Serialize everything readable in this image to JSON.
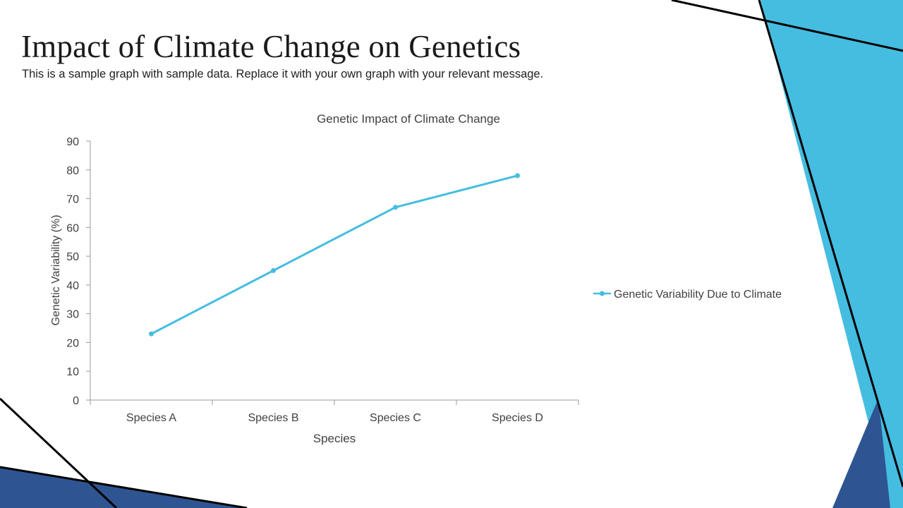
{
  "slide": {
    "title": "Impact of Climate Change on Genetics",
    "subtitle": "This is a sample graph with sample data. Replace it with your own graph with your relevant message."
  },
  "theme": {
    "accent_light": "#45BDE0",
    "accent_dark": "#2E5591",
    "line_color": "#000000"
  },
  "chart_data": {
    "type": "line",
    "title": "Genetic Impact of Climate Change",
    "xlabel": "Species",
    "ylabel": "Genetic Variability (%)",
    "categories": [
      "Species A",
      "Species B",
      "Species C",
      "Species D"
    ],
    "series": [
      {
        "name": "Genetic Variability Due to Climate",
        "color": "#45BDE0",
        "values": [
          23,
          45,
          67,
          78
        ]
      }
    ],
    "ylim": [
      0,
      90
    ],
    "ytick_step": 10,
    "grid": false,
    "legend": "right"
  }
}
